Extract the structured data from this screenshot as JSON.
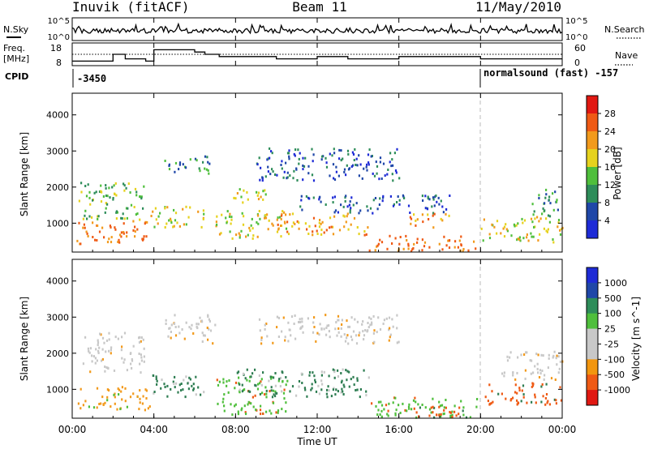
{
  "header": {
    "station": "Inuvik (fitACF)",
    "beam": "Beam 11",
    "date": "11/May/2010"
  },
  "ticks": {
    "sky_top": "10^5",
    "sky_bottom": "10^0",
    "freq_top": "18",
    "freq_bottom": "8",
    "nave_top": "60",
    "nave_bottom": "0"
  },
  "labels": {
    "nsky": "N.Sky",
    "freq_line1": "Freq.",
    "freq_line2": "[MHz]",
    "nsearch": "N.Search",
    "nave": "Nave",
    "cpid": "CPID",
    "cpid_left": "-3450",
    "cpid_right": "normalsound (fast) -157",
    "ylabel": "Slant Range [km]",
    "xlabel": "Time UT"
  },
  "colors": {
    "power": [
      "#1e2bd6",
      "#1f47a8",
      "#2e8d5a",
      "#4fbf3c",
      "#e6d21e",
      "#f29a1c",
      "#ef5a14",
      "#e11812"
    ],
    "velocity": [
      "#e11812",
      "#ef5a14",
      "#f2960f",
      "#c8c8c8",
      "#c8c8c8",
      "#4fbf3c",
      "#2e8d5a",
      "#1f47a8",
      "#1e2bd6"
    ],
    "vel_scatter": [
      "#f29a1c",
      "#2e7d52",
      "#4fbf3c",
      "#c8c8c8",
      "#ef5a14"
    ],
    "pow_scatter": [
      "#1e2bd6",
      "#1f47a8",
      "#2e8d5a",
      "#4fbf3c",
      "#e6d21e",
      "#f29a1c",
      "#ef5a14"
    ]
  },
  "chart_data": [
    {
      "type": "heatmap",
      "panel": "power",
      "ylabel": "Slant Range [km]",
      "colorbar_label": "Power [dB]",
      "colorbar_ticks": [
        "28",
        "24",
        "20",
        "16",
        "12",
        "8",
        "4"
      ],
      "xlim": [
        "00:00",
        "24:00"
      ],
      "ylim": [
        200,
        4600
      ],
      "yticks": [
        "1000",
        "2000",
        "3000",
        "4000"
      ],
      "yticks_values": [
        1000,
        2000,
        3000,
        4000
      ],
      "regions": [
        {
          "t0": 0.2,
          "t1": 3.8,
          "r0": 450,
          "r1": 1100,
          "level": 7
        },
        {
          "t0": 0.3,
          "t1": 3.5,
          "r0": 1100,
          "r1": 2200,
          "level": 4
        },
        {
          "t0": 3.8,
          "t1": 6.5,
          "r0": 900,
          "r1": 1500,
          "level": 5
        },
        {
          "t0": 4.5,
          "t1": 6.8,
          "r0": 2400,
          "r1": 2900,
          "level": 3
        },
        {
          "t0": 7.0,
          "t1": 10.5,
          "r0": 600,
          "r1": 1400,
          "level": 5
        },
        {
          "t0": 7.5,
          "t1": 9.5,
          "r0": 1600,
          "r1": 2000,
          "level": 5
        },
        {
          "t0": 10.0,
          "t1": 14.5,
          "r0": 700,
          "r1": 1300,
          "level": 6
        },
        {
          "t0": 11.0,
          "t1": 18.5,
          "r0": 1300,
          "r1": 1800,
          "level": 2
        },
        {
          "t0": 14.5,
          "t1": 19.8,
          "r0": 250,
          "r1": 700,
          "level": 7
        },
        {
          "t0": 16.5,
          "t1": 18.5,
          "r0": 900,
          "r1": 1300,
          "level": 6
        },
        {
          "t0": 20.0,
          "t1": 24.0,
          "r0": 500,
          "r1": 1200,
          "level": 5
        },
        {
          "t0": 22.5,
          "t1": 24.0,
          "r0": 1200,
          "r1": 2000,
          "level": 3
        },
        {
          "t0": 9.0,
          "t1": 16.0,
          "r0": 2200,
          "r1": 3100,
          "level": 2
        }
      ]
    },
    {
      "type": "heatmap",
      "panel": "velocity",
      "ylabel": "Slant Range [km]",
      "colorbar_label": "Velocity [m s^-1]",
      "colorbar_ticks": [
        "1000",
        "500",
        "100",
        "25",
        "-25",
        "-100",
        "-500",
        "-1000"
      ],
      "xlim": [
        "00:00",
        "24:00"
      ],
      "ylim": [
        200,
        4600
      ],
      "yticks": [
        "1000",
        "2000",
        "3000",
        "4000"
      ],
      "yticks_values": [
        1000,
        2000,
        3000,
        4000
      ],
      "xticks": [
        "00:00",
        "04:00",
        "08:00",
        "12:00",
        "16:00",
        "20:00",
        "00:00"
      ],
      "regions": [
        {
          "t0": 0.2,
          "t1": 3.8,
          "r0": 450,
          "r1": 1100,
          "color": 0
        },
        {
          "t0": 0.5,
          "t1": 3.5,
          "r0": 1500,
          "r1": 2600,
          "color": 3
        },
        {
          "t0": 3.8,
          "t1": 6.5,
          "r0": 800,
          "r1": 1500,
          "color": 1
        },
        {
          "t0": 4.5,
          "t1": 7.0,
          "r0": 2300,
          "r1": 3100,
          "color": 3
        },
        {
          "t0": 7.0,
          "t1": 10.5,
          "r0": 300,
          "r1": 1400,
          "color": 2
        },
        {
          "t0": 8.0,
          "t1": 14.5,
          "r0": 800,
          "r1": 1600,
          "color": 1
        },
        {
          "t0": 9.0,
          "t1": 16.0,
          "r0": 2300,
          "r1": 3100,
          "color": 3
        },
        {
          "t0": 14.5,
          "t1": 19.8,
          "r0": 250,
          "r1": 800,
          "color": 2
        },
        {
          "t0": 16.5,
          "t1": 19.5,
          "r0": 250,
          "r1": 600,
          "color": 4
        },
        {
          "t0": 20.0,
          "t1": 24.0,
          "r0": 600,
          "r1": 1200,
          "color": 4
        },
        {
          "t0": 21.0,
          "t1": 24.0,
          "r0": 1300,
          "r1": 2100,
          "color": 3
        }
      ]
    },
    {
      "type": "line",
      "panel": "n_sky",
      "note_series": [
        "N.Sky",
        "N.Search"
      ]
    },
    {
      "type": "line",
      "panel": "freq",
      "series": [
        {
          "name": "Freq.",
          "x": [
            0,
            1.5,
            2,
            2.2,
            2.6,
            3.2,
            3.6,
            4,
            6,
            6.5,
            7.2,
            8,
            10,
            11,
            12,
            13,
            13.5,
            14,
            15,
            16,
            17,
            18,
            19,
            20,
            21,
            22,
            23,
            24
          ],
          "values": [
            10,
            10,
            13,
            13,
            11,
            11,
            10,
            15,
            14,
            13,
            12,
            12,
            11,
            11,
            12,
            12,
            11,
            11,
            11,
            12,
            12,
            12,
            12,
            11,
            11,
            11,
            11,
            11
          ]
        },
        {
          "name": "Nave",
          "x": [
            0,
            24
          ],
          "values": [
            30,
            30
          ]
        }
      ]
    }
  ]
}
